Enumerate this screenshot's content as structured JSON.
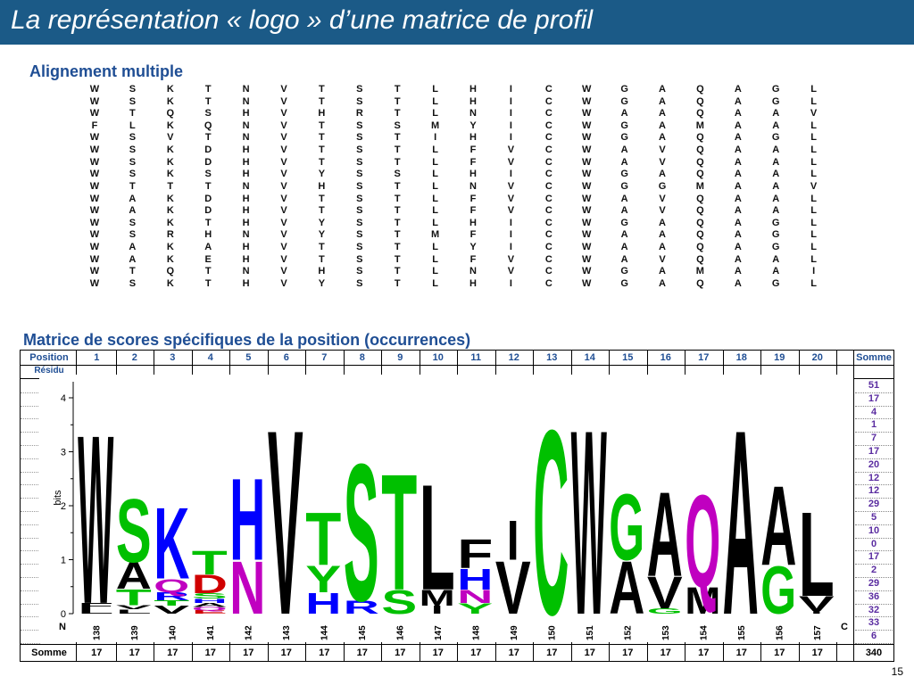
{
  "slide": {
    "title": "La représentation « logo » d’une matrice de profil",
    "page_number": "15"
  },
  "alignment": {
    "heading": "Alignement multiple",
    "rows": [
      "WSKTNVTSTLHICWGAQAGL",
      "WSKTNVTSTLHICWGAQAGL",
      "WTQSHVHRTLNICWAAQAAV",
      "FLKQNVTSSMYICWGAMAAL",
      "WSVTNVTSTIHICWGAQAGL",
      "WSKDHVTSTLFVCWAVQAAL",
      "WSKDHVTSTLFVCWAVQAAL",
      "WSKSHVYSSLHICWGAQAAL",
      "WTTTNVHSTLNVCWGGMAAV",
      "WAKDHVTSTLFVCWAVQAAL",
      "WAKDHVTSTLFVCWAVQAAL",
      "WSKTHVYSTLHICWGAQAGL",
      "WSRHNVYSTMFICWAAQAGL",
      "WAKAHVTSTLYICWAAQAGL",
      "WAKEHVTSTLFVCWAVQAAL",
      "WTQTNVHSTLNVCWGAMAAI",
      "WSKTHVYSTLHICWGAQAGL"
    ]
  },
  "matrix": {
    "heading": "Matrice de scores spécifiques de la position (occurrences)",
    "position_label": "Position",
    "residue_label": "Résidu",
    "sum_label": "Somme",
    "positions": [
      "1",
      "2",
      "3",
      "4",
      "5",
      "6",
      "7",
      "8",
      "9",
      "10",
      "11",
      "12",
      "13",
      "14",
      "15",
      "16",
      "17",
      "18",
      "19",
      "20"
    ],
    "row_sums": [
      "51",
      "17",
      "4",
      "1",
      "7",
      "17",
      "20",
      "12",
      "12",
      "29",
      "5",
      "10",
      "0",
      "17",
      "2",
      "29",
      "36",
      "32",
      "33",
      "6"
    ],
    "column_sums": [
      "17",
      "17",
      "17",
      "17",
      "17",
      "17",
      "17",
      "17",
      "17",
      "17",
      "17",
      "17",
      "17",
      "17",
      "17",
      "17",
      "17",
      "17",
      "17",
      "17"
    ],
    "total": "340"
  },
  "logo": {
    "y_label": "bits",
    "y_ticks": [
      "0",
      "1",
      "2",
      "3",
      "4"
    ],
    "y_range": [
      0,
      4
    ],
    "n_label": "N",
    "c_label": "C",
    "x_labels": [
      "138",
      "139",
      "140",
      "141",
      "142",
      "143",
      "144",
      "145",
      "146",
      "147",
      "148",
      "149",
      "150",
      "151",
      "152",
      "153",
      "154",
      "155",
      "156",
      "157"
    ],
    "colors": {
      "acidic": "#d00000",
      "basic": "#0000ff",
      "polar": "#00c000",
      "hydrophobic": "#000000",
      "amide": "#c000c0"
    },
    "stacks": [
      [
        {
          "aa": "L",
          "bits": 0.1,
          "color": "#000000"
        },
        {
          "aa": "F",
          "bits": 0.1,
          "color": "#000000"
        },
        {
          "aa": "W",
          "bits": 3.2,
          "color": "#000000"
        }
      ],
      [
        {
          "aa": "L",
          "bits": 0.08,
          "color": "#000000"
        },
        {
          "aa": "V",
          "bits": 0.08,
          "color": "#000000"
        },
        {
          "aa": "T",
          "bits": 0.3,
          "color": "#00c000"
        },
        {
          "aa": "A",
          "bits": 0.5,
          "color": "#000000"
        },
        {
          "aa": "S",
          "bits": 1.2,
          "color": "#00c000"
        }
      ],
      [
        {
          "aa": "V",
          "bits": 0.15,
          "color": "#000000"
        },
        {
          "aa": "T",
          "bits": 0.1,
          "color": "#00c000"
        },
        {
          "aa": "R",
          "bits": 0.15,
          "color": "#0000ff"
        },
        {
          "aa": "Q",
          "bits": 0.25,
          "color": "#c000c0"
        },
        {
          "aa": "K",
          "bits": 1.35,
          "color": "#0000ff"
        }
      ],
      [
        {
          "aa": "E",
          "bits": 0.06,
          "color": "#d00000"
        },
        {
          "aa": "Q",
          "bits": 0.06,
          "color": "#c000c0"
        },
        {
          "aa": "A",
          "bits": 0.08,
          "color": "#000000"
        },
        {
          "aa": "H",
          "bits": 0.08,
          "color": "#0000ff"
        },
        {
          "aa": "S",
          "bits": 0.1,
          "color": "#00c000"
        },
        {
          "aa": "D",
          "bits": 0.35,
          "color": "#d00000"
        },
        {
          "aa": "T",
          "bits": 0.45,
          "color": "#00c000"
        }
      ],
      [
        {
          "aa": "N",
          "bits": 1.0,
          "color": "#c000c0"
        },
        {
          "aa": "H",
          "bits": 1.55,
          "color": "#0000ff"
        }
      ],
      [
        {
          "aa": "V",
          "bits": 3.5,
          "color": "#000000"
        }
      ],
      [
        {
          "aa": "H",
          "bits": 0.4,
          "color": "#0000ff"
        },
        {
          "aa": "Y",
          "bits": 0.5,
          "color": "#00c000"
        },
        {
          "aa": "T",
          "bits": 1.0,
          "color": "#00c000"
        }
      ],
      [
        {
          "aa": "R",
          "bits": 0.25,
          "color": "#0000ff"
        },
        {
          "aa": "S",
          "bits": 2.6,
          "color": "#00c000"
        }
      ],
      [
        {
          "aa": "S",
          "bits": 0.45,
          "color": "#00c000"
        },
        {
          "aa": "T",
          "bits": 2.2,
          "color": "#00c000"
        }
      ],
      [
        {
          "aa": "I",
          "bits": 0.15,
          "color": "#000000"
        },
        {
          "aa": "M",
          "bits": 0.3,
          "color": "#000000"
        },
        {
          "aa": "L",
          "bits": 2.0,
          "color": "#000000"
        }
      ],
      [
        {
          "aa": "Y",
          "bits": 0.2,
          "color": "#00c000"
        },
        {
          "aa": "N",
          "bits": 0.25,
          "color": "#c000c0"
        },
        {
          "aa": "H",
          "bits": 0.4,
          "color": "#0000ff"
        },
        {
          "aa": "F",
          "bits": 0.55,
          "color": "#000000"
        }
      ],
      [
        {
          "aa": "V",
          "bits": 1.0,
          "color": "#000000"
        },
        {
          "aa": "I",
          "bits": 0.75,
          "color": "#000000"
        }
      ],
      [
        {
          "aa": "C",
          "bits": 3.5,
          "color": "#00c000"
        }
      ],
      [
        {
          "aa": "W",
          "bits": 3.5,
          "color": "#000000"
        }
      ],
      [
        {
          "aa": "A",
          "bits": 1.0,
          "color": "#000000"
        },
        {
          "aa": "G",
          "bits": 1.25,
          "color": "#00c000"
        }
      ],
      [
        {
          "aa": "G",
          "bits": 0.1,
          "color": "#00c000"
        },
        {
          "aa": "V",
          "bits": 0.6,
          "color": "#000000"
        },
        {
          "aa": "A",
          "bits": 1.6,
          "color": "#000000"
        }
      ],
      [
        {
          "aa": "M",
          "bits": 0.5,
          "color": "#000000"
        },
        {
          "aa": "Q",
          "bits": 1.75,
          "color": "#c000c0"
        }
      ],
      [
        {
          "aa": "A",
          "bits": 3.5,
          "color": "#000000"
        }
      ],
      [
        {
          "aa": "G",
          "bits": 0.9,
          "color": "#00c000"
        },
        {
          "aa": "A",
          "bits": 1.5,
          "color": "#000000"
        }
      ],
      [
        {
          "aa": "I",
          "bits": 0.05,
          "color": "#000000"
        },
        {
          "aa": "V",
          "bits": 0.28,
          "color": "#000000"
        },
        {
          "aa": "L",
          "bits": 1.6,
          "color": "#000000"
        }
      ]
    ]
  }
}
